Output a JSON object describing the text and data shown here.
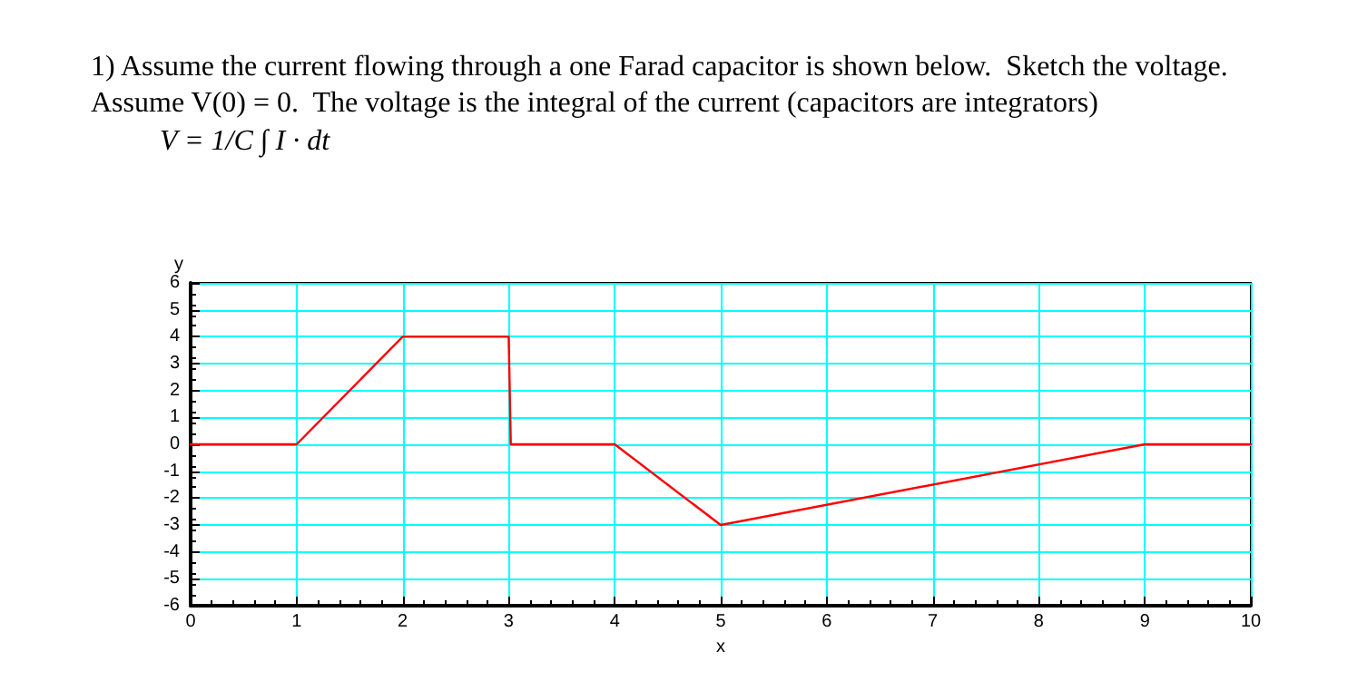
{
  "chart_data": {
    "type": "line",
    "title": "1) Assume the current flowing through a one Farad capacitor is shown below.  Sketch the voltage.",
    "subtitle": "Assume V(0) = 0.  The voltage is the integral of the current (capacitors are integrators)",
    "annotations": [
      "V = 1/C ∫ I · dt"
    ],
    "xlabel": "x",
    "ylabel": "y",
    "x": [
      0,
      1,
      2,
      3,
      3.02,
      4,
      5,
      9,
      10
    ],
    "series": [
      {
        "color": "#ff0000",
        "values": [
          0,
          0,
          4,
          4,
          0,
          0,
          -3,
          0,
          0
        ]
      }
    ],
    "xlim": [
      0,
      10
    ],
    "xticks": [
      0,
      1,
      2,
      3,
      4,
      5,
      6,
      7,
      8,
      9,
      10
    ],
    "ylim": [
      -6,
      6
    ],
    "yticks": [
      -6,
      -5,
      -4,
      -3,
      -2,
      -1,
      0,
      1,
      2,
      3,
      4,
      5,
      6
    ],
    "grid": true,
    "marker": "none",
    "line_style": "solid"
  }
}
